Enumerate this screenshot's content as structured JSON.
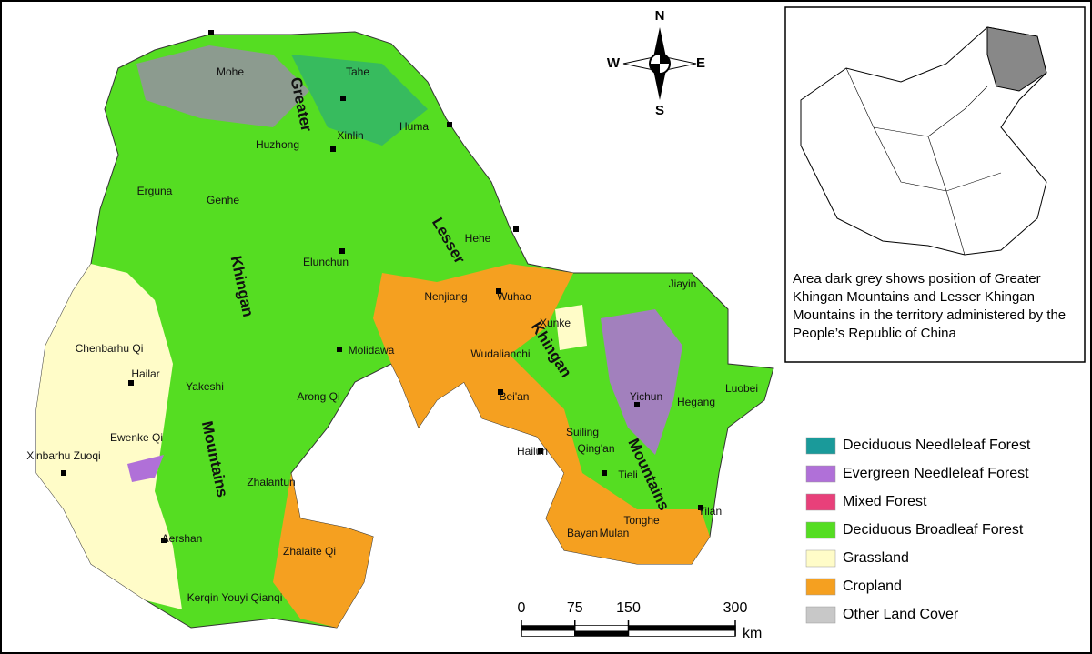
{
  "map": {
    "places": [
      "Mohe",
      "Tahe",
      "Huzhong",
      "Xinlin",
      "Huma",
      "Erguna",
      "Genhe",
      "Hehe",
      "Elunchun",
      "Nenjiang",
      "Wuhao",
      "Jiayin",
      "Xunke",
      "Chenbarhu Qi",
      "Molidawa",
      "Wudalianchi",
      "Hailar",
      "Yakeshi",
      "Arong Qi",
      "Bei'an",
      "Yichun",
      "Hegang",
      "Luobei",
      "Ewenke Qi",
      "Suiling",
      "Xinbarhu Zuoqi",
      "Hailun",
      "Qing'an",
      "Tieli",
      "Zhalantun",
      "Aershan",
      "Tonghe",
      "Yilan",
      "Bayan",
      "Mulan",
      "Zhalaite Qi",
      "Kerqin Youyi Qianqi"
    ],
    "ranges": [
      "Greater",
      "Khingan",
      "Mountains",
      "Lesser",
      "Khingan",
      "Mountains"
    ],
    "compass": {
      "north": "N",
      "south": "S",
      "east": "E",
      "west": "W"
    },
    "inset_caption": "Area dark grey shows position of Greater Khingan Mountains and Lesser Khingan Mountains in the territory administered by the People’s Republic of China",
    "legend": [
      {
        "label": "Deciduous Needleleaf Forest",
        "color": "#1a9a9a"
      },
      {
        "label": "Evergreen Needleleaf Forest",
        "color": "#b070d8"
      },
      {
        "label": "Mixed Forest",
        "color": "#e8407a"
      },
      {
        "label": "Deciduous Broadleaf Forest",
        "color": "#55dd22"
      },
      {
        "label": "Grassland",
        "color": "#fffcc8"
      },
      {
        "label": "Cropland",
        "color": "#f5a020"
      },
      {
        "label": "Other Land Cover",
        "color": "#c8c8c8"
      }
    ],
    "scale": {
      "ticks": [
        0,
        75,
        150,
        300
      ],
      "unit": "km"
    }
  }
}
